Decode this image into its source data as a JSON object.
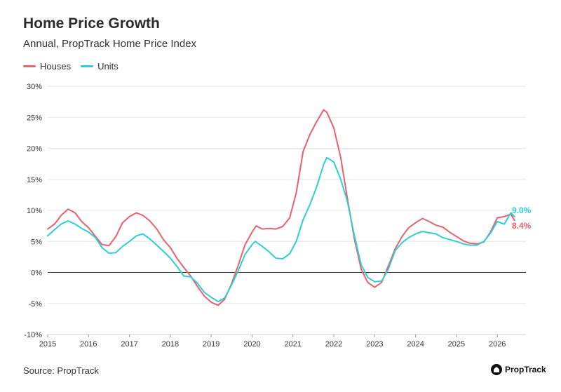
{
  "header": {
    "title": "Home Price Growth",
    "subtitle": "Annual, PropTrack Home Price Index"
  },
  "footer": {
    "source": "Source: PropTrack",
    "logo_text": "PropTrack"
  },
  "colors": {
    "houses": "#e8616d",
    "units": "#2ecfd3",
    "grid": "#e6e6e6",
    "zero": "#333333"
  },
  "chart_data": {
    "type": "line",
    "title": "Home Price Growth",
    "subtitle": "Annual, PropTrack Home Price Index",
    "legend": "top-left",
    "grid": true,
    "xlim": [
      2015.0,
      2026.7
    ],
    "ylim": [
      -10,
      30
    ],
    "x_ticks": [
      2015,
      2016,
      2017,
      2018,
      2019,
      2020,
      2021,
      2022,
      2023,
      2024,
      2025,
      2026
    ],
    "x_tick_labels": [
      "2015",
      "2016",
      "2017",
      "2018",
      "2019",
      "2020",
      "2021",
      "2022",
      "2023",
      "2024",
      "2025",
      "2026"
    ],
    "y_ticks": [
      -10,
      -5,
      0,
      5,
      10,
      15,
      20,
      25,
      30
    ],
    "y_tick_labels": [
      "-10%",
      "-5%",
      "0%",
      "5%",
      "10%",
      "15%",
      "20%",
      "25%",
      "30%"
    ],
    "series": [
      {
        "name": "Houses",
        "color": "#e8616d",
        "end_label": "8.4%",
        "points": [
          [
            2015.0,
            7.0
          ],
          [
            2015.17,
            7.8
          ],
          [
            2015.33,
            9.2
          ],
          [
            2015.5,
            10.2
          ],
          [
            2015.67,
            9.6
          ],
          [
            2015.83,
            8.2
          ],
          [
            2016.0,
            7.2
          ],
          [
            2016.17,
            5.8
          ],
          [
            2016.33,
            4.5
          ],
          [
            2016.5,
            4.3
          ],
          [
            2016.67,
            5.8
          ],
          [
            2016.83,
            8.0
          ],
          [
            2017.0,
            9.0
          ],
          [
            2017.17,
            9.6
          ],
          [
            2017.33,
            9.2
          ],
          [
            2017.5,
            8.3
          ],
          [
            2017.67,
            7.0
          ],
          [
            2017.83,
            5.3
          ],
          [
            2018.0,
            4.0
          ],
          [
            2018.17,
            2.2
          ],
          [
            2018.33,
            0.8
          ],
          [
            2018.5,
            -0.6
          ],
          [
            2018.67,
            -2.3
          ],
          [
            2018.83,
            -3.8
          ],
          [
            2019.0,
            -4.8
          ],
          [
            2019.17,
            -5.3
          ],
          [
            2019.33,
            -4.3
          ],
          [
            2019.5,
            -1.8
          ],
          [
            2019.67,
            1.3
          ],
          [
            2019.83,
            4.5
          ],
          [
            2020.0,
            6.5
          ],
          [
            2020.1,
            7.5
          ],
          [
            2020.25,
            7.0
          ],
          [
            2020.42,
            7.1
          ],
          [
            2020.58,
            7.0
          ],
          [
            2020.75,
            7.4
          ],
          [
            2020.92,
            8.8
          ],
          [
            2021.08,
            12.8
          ],
          [
            2021.25,
            19.5
          ],
          [
            2021.42,
            22.3
          ],
          [
            2021.58,
            24.3
          ],
          [
            2021.75,
            26.2
          ],
          [
            2021.83,
            25.8
          ],
          [
            2022.0,
            23.3
          ],
          [
            2022.17,
            18.5
          ],
          [
            2022.33,
            12.0
          ],
          [
            2022.5,
            5.5
          ],
          [
            2022.67,
            0.5
          ],
          [
            2022.83,
            -1.6
          ],
          [
            2023.0,
            -2.4
          ],
          [
            2023.17,
            -1.6
          ],
          [
            2023.33,
            1.0
          ],
          [
            2023.5,
            3.8
          ],
          [
            2023.67,
            5.8
          ],
          [
            2023.83,
            7.2
          ],
          [
            2024.0,
            8.0
          ],
          [
            2024.17,
            8.7
          ],
          [
            2024.33,
            8.2
          ],
          [
            2024.5,
            7.6
          ],
          [
            2024.67,
            7.3
          ],
          [
            2024.83,
            6.5
          ],
          [
            2025.0,
            5.8
          ],
          [
            2025.17,
            5.1
          ],
          [
            2025.33,
            4.7
          ],
          [
            2025.5,
            4.6
          ],
          [
            2025.67,
            4.9
          ],
          [
            2025.83,
            6.5
          ],
          [
            2026.0,
            8.8
          ],
          [
            2026.17,
            9.0
          ],
          [
            2026.33,
            9.4
          ],
          [
            2026.42,
            8.4
          ]
        ]
      },
      {
        "name": "Units",
        "color": "#2ecfd3",
        "end_label": "9.0%",
        "points": [
          [
            2015.0,
            5.9
          ],
          [
            2015.17,
            6.9
          ],
          [
            2015.33,
            7.8
          ],
          [
            2015.5,
            8.3
          ],
          [
            2015.67,
            7.8
          ],
          [
            2015.83,
            7.1
          ],
          [
            2016.0,
            6.5
          ],
          [
            2016.17,
            5.6
          ],
          [
            2016.33,
            4.0
          ],
          [
            2016.5,
            3.1
          ],
          [
            2016.67,
            3.2
          ],
          [
            2016.83,
            4.2
          ],
          [
            2017.0,
            5.0
          ],
          [
            2017.17,
            5.9
          ],
          [
            2017.33,
            6.2
          ],
          [
            2017.5,
            5.4
          ],
          [
            2017.67,
            4.4
          ],
          [
            2017.83,
            3.4
          ],
          [
            2018.0,
            2.3
          ],
          [
            2018.17,
            0.9
          ],
          [
            2018.33,
            -0.6
          ],
          [
            2018.5,
            -0.7
          ],
          [
            2018.67,
            -1.8
          ],
          [
            2018.83,
            -3.2
          ],
          [
            2019.0,
            -4.0
          ],
          [
            2019.17,
            -4.7
          ],
          [
            2019.33,
            -4.1
          ],
          [
            2019.5,
            -2.0
          ],
          [
            2019.67,
            0.4
          ],
          [
            2019.83,
            2.9
          ],
          [
            2020.0,
            4.5
          ],
          [
            2020.08,
            5.0
          ],
          [
            2020.25,
            4.2
          ],
          [
            2020.42,
            3.3
          ],
          [
            2020.58,
            2.3
          ],
          [
            2020.75,
            2.2
          ],
          [
            2020.92,
            3.0
          ],
          [
            2021.08,
            5.0
          ],
          [
            2021.25,
            8.5
          ],
          [
            2021.42,
            11.0
          ],
          [
            2021.58,
            13.8
          ],
          [
            2021.75,
            17.4
          ],
          [
            2021.83,
            18.5
          ],
          [
            2022.0,
            17.8
          ],
          [
            2022.17,
            15.0
          ],
          [
            2022.33,
            11.5
          ],
          [
            2022.5,
            6.0
          ],
          [
            2022.67,
            1.2
          ],
          [
            2022.83,
            -0.8
          ],
          [
            2023.0,
            -1.5
          ],
          [
            2023.17,
            -1.4
          ],
          [
            2023.33,
            0.5
          ],
          [
            2023.5,
            3.5
          ],
          [
            2023.67,
            4.8
          ],
          [
            2023.83,
            5.6
          ],
          [
            2024.0,
            6.2
          ],
          [
            2024.17,
            6.6
          ],
          [
            2024.33,
            6.4
          ],
          [
            2024.5,
            6.2
          ],
          [
            2024.67,
            5.6
          ],
          [
            2024.83,
            5.3
          ],
          [
            2025.0,
            5.0
          ],
          [
            2025.17,
            4.6
          ],
          [
            2025.33,
            4.4
          ],
          [
            2025.5,
            4.4
          ],
          [
            2025.67,
            5.0
          ],
          [
            2025.83,
            6.3
          ],
          [
            2026.0,
            8.2
          ],
          [
            2026.17,
            7.8
          ],
          [
            2026.33,
            9.6
          ],
          [
            2026.42,
            9.0
          ]
        ]
      }
    ]
  }
}
